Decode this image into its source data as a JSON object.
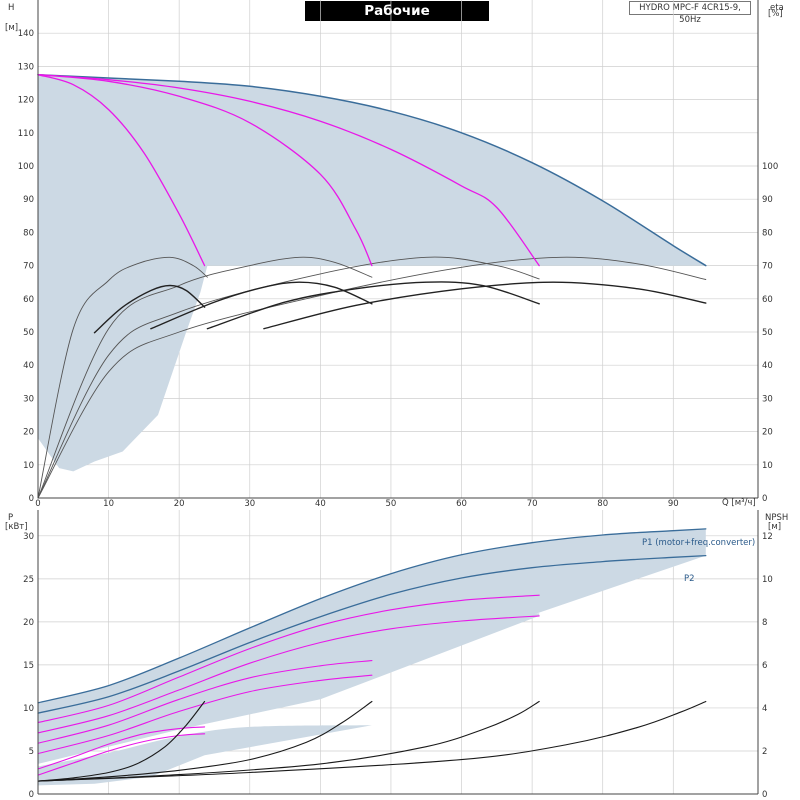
{
  "chart_title": "Рабочие характеристики",
  "product": "HYDRO MPC-F 4CR15-9, 50Hz",
  "colors": {
    "band": "#ccd9e4",
    "max_curve": "#3a6d9a",
    "reduced_curve": "#e818e8",
    "efficiency": "#555555",
    "npsh": "#1a1a1a",
    "grid": "#cfcfcf",
    "axis": "#444444"
  },
  "chart_data": [
    {
      "type": "line",
      "title": "Рабочие характеристики",
      "xlabel": "Q [м³/ч]",
      "ylabel": "H [м]",
      "ylabel_right": "eta [%]",
      "xlim": [
        0,
        102
      ],
      "ylim": [
        0,
        150
      ],
      "x_ticks": [
        0,
        10,
        20,
        30,
        40,
        50,
        60,
        70,
        80,
        90
      ],
      "y_ticks": [
        0,
        10,
        20,
        30,
        40,
        50,
        60,
        70,
        80,
        90,
        100,
        110,
        120,
        130,
        140
      ],
      "y2_ticks": [
        0,
        10,
        20,
        30,
        40,
        50,
        60,
        70,
        80,
        90,
        100
      ],
      "grid": true,
      "head_curves": [
        {
          "pumps": 4,
          "x": [
            0,
            10,
            20,
            30,
            40,
            50,
            60,
            70,
            80,
            90,
            94.6
          ],
          "y": [
            127.5,
            126.5,
            125.5,
            124,
            121,
            116.5,
            110,
            101,
            89.5,
            76,
            70
          ]
        },
        {
          "pumps": 3,
          "x": [
            0,
            10,
            20,
            30,
            40,
            50,
            60,
            65,
            71
          ],
          "y": [
            127.5,
            126,
            123.5,
            119.5,
            113.5,
            105,
            94,
            87.5,
            70
          ]
        },
        {
          "pumps": 2,
          "x": [
            0,
            10,
            20,
            30,
            40,
            45,
            47.3
          ],
          "y": [
            127.5,
            125.5,
            121,
            113,
            97.5,
            81,
            70
          ]
        },
        {
          "pumps": 1,
          "x": [
            0,
            5,
            10,
            15,
            20,
            23.6
          ],
          "y": [
            127.5,
            124.5,
            117,
            104,
            85.5,
            70
          ]
        }
      ],
      "efficiency_light": [
        {
          "x": [
            0,
            5,
            10,
            14,
            18.7,
            22,
            24
          ],
          "y": [
            0,
            51,
            65.5,
            70.5,
            72.5,
            70,
            66.5
          ]
        },
        {
          "x": [
            0,
            10,
            20,
            30,
            37,
            42,
            47.3
          ],
          "y": [
            0,
            51,
            64,
            70,
            72.5,
            71,
            66.5
          ]
        },
        {
          "x": [
            0,
            10,
            20,
            40,
            55,
            65,
            71
          ],
          "y": [
            0,
            43,
            56,
            67.5,
            72.5,
            70,
            66
          ]
        },
        {
          "x": [
            0,
            10,
            20,
            40,
            60,
            74,
            85,
            94.6
          ],
          "y": [
            0,
            38,
            50,
            61,
            69.5,
            72.5,
            70.5,
            65.8
          ]
        }
      ],
      "efficiency_dark": [
        {
          "x": [
            8,
            12,
            16,
            18.7,
            21,
            23.6
          ],
          "y": [
            49.8,
            57.5,
            62.5,
            64,
            62.5,
            57.5
          ]
        },
        {
          "x": [
            16,
            25,
            32,
            37,
            42,
            47.3
          ],
          "y": [
            51,
            59,
            63.5,
            65,
            63.5,
            58.5
          ]
        },
        {
          "x": [
            24,
            35,
            45,
            55,
            63,
            71
          ],
          "y": [
            51,
            59,
            63,
            65,
            64,
            58.5
          ]
        },
        {
          "x": [
            32,
            45,
            60,
            73,
            85,
            94.6
          ],
          "y": [
            51,
            58,
            63,
            65,
            63,
            58.7
          ]
        }
      ]
    },
    {
      "type": "line",
      "xlabel": "Q [м³/ч]",
      "ylabel": "P [кВт]",
      "ylabel_right": "NPSH [м]",
      "xlim": [
        0,
        102
      ],
      "ylim": [
        0,
        33
      ],
      "y2lim": [
        0,
        13.2
      ],
      "y_ticks": [
        0,
        5,
        10,
        15,
        20,
        25,
        30
      ],
      "y2_ticks": [
        0,
        2,
        4,
        6,
        8,
        10,
        12
      ],
      "grid": true,
      "power_curves": [
        {
          "name": "P1 (motor+freq.converter)",
          "x": [
            0,
            10,
            20,
            30,
            40,
            50,
            60,
            70,
            80,
            90,
            94.6
          ],
          "y": [
            10.6,
            12.6,
            15.8,
            19.3,
            22.7,
            25.6,
            27.8,
            29.2,
            30.1,
            30.6,
            30.8
          ]
        },
        {
          "name": "P2",
          "x": [
            0,
            10,
            20,
            30,
            40,
            50,
            60,
            70,
            80,
            90,
            94.6
          ],
          "y": [
            9.4,
            11.3,
            14.3,
            17.6,
            20.6,
            23.2,
            25.1,
            26.3,
            27,
            27.5,
            27.7
          ]
        },
        {
          "name": "",
          "x": [
            0,
            10,
            20,
            30,
            40,
            50,
            60,
            71
          ],
          "y": [
            8.3,
            10.3,
            13.6,
            16.9,
            19.6,
            21.4,
            22.5,
            23.1
          ]
        },
        {
          "name": "",
          "x": [
            0,
            10,
            20,
            30,
            40,
            50,
            60,
            71
          ],
          "y": [
            7.1,
            9.1,
            12.1,
            15.2,
            17.6,
            19.2,
            20.1,
            20.7
          ]
        },
        {
          "name": "",
          "x": [
            0,
            10,
            20,
            30,
            40,
            47.3
          ],
          "y": [
            5.9,
            8,
            11,
            13.5,
            14.9,
            15.5
          ]
        },
        {
          "name": "",
          "x": [
            0,
            10,
            20,
            30,
            40,
            47.3
          ],
          "y": [
            4.7,
            6.8,
            9.6,
            11.9,
            13.2,
            13.8
          ]
        },
        {
          "name": "",
          "x": [
            0,
            5,
            10,
            15,
            20,
            23.6
          ],
          "y": [
            2.9,
            4.3,
            5.8,
            7,
            7.6,
            7.8
          ]
        },
        {
          "name": "",
          "x": [
            0,
            5,
            10,
            15,
            20,
            23.6
          ],
          "y": [
            2.2,
            3.6,
            5,
            6.1,
            6.8,
            7
          ]
        }
      ],
      "npsh_curves": [
        {
          "x": [
            0,
            5,
            10,
            14,
            18,
            21,
            23.6
          ],
          "y": [
            0.6,
            0.75,
            1.0,
            1.4,
            2.2,
            3.2,
            4.3
          ]
        },
        {
          "x": [
            0,
            10,
            20,
            30,
            38,
            43,
            47.3
          ],
          "y": [
            0.6,
            0.8,
            1.1,
            1.6,
            2.4,
            3.3,
            4.3
          ]
        },
        {
          "x": [
            0,
            20,
            40,
            55,
            63,
            68,
            71
          ],
          "y": [
            0.6,
            0.9,
            1.4,
            2.2,
            3.0,
            3.7,
            4.3
          ]
        },
        {
          "x": [
            0,
            30,
            60,
            75,
            85,
            91,
            94.6
          ],
          "y": [
            0.6,
            1.0,
            1.6,
            2.3,
            3.1,
            3.8,
            4.3
          ]
        }
      ]
    }
  ],
  "axis_labels": {
    "top_left": [
      "H",
      "[м]"
    ],
    "top_right": [
      "eta",
      "[%]"
    ],
    "bottom_left": [
      "P",
      "[кВт]"
    ],
    "bottom_right": [
      "NPSH",
      "[м]"
    ],
    "x_top": "Q [м³/ч]",
    "x_bottom": "Q [м³/ч]"
  },
  "legend_labels": {
    "p1": "P1 (motor+freq.converter)",
    "p2": "P2"
  }
}
